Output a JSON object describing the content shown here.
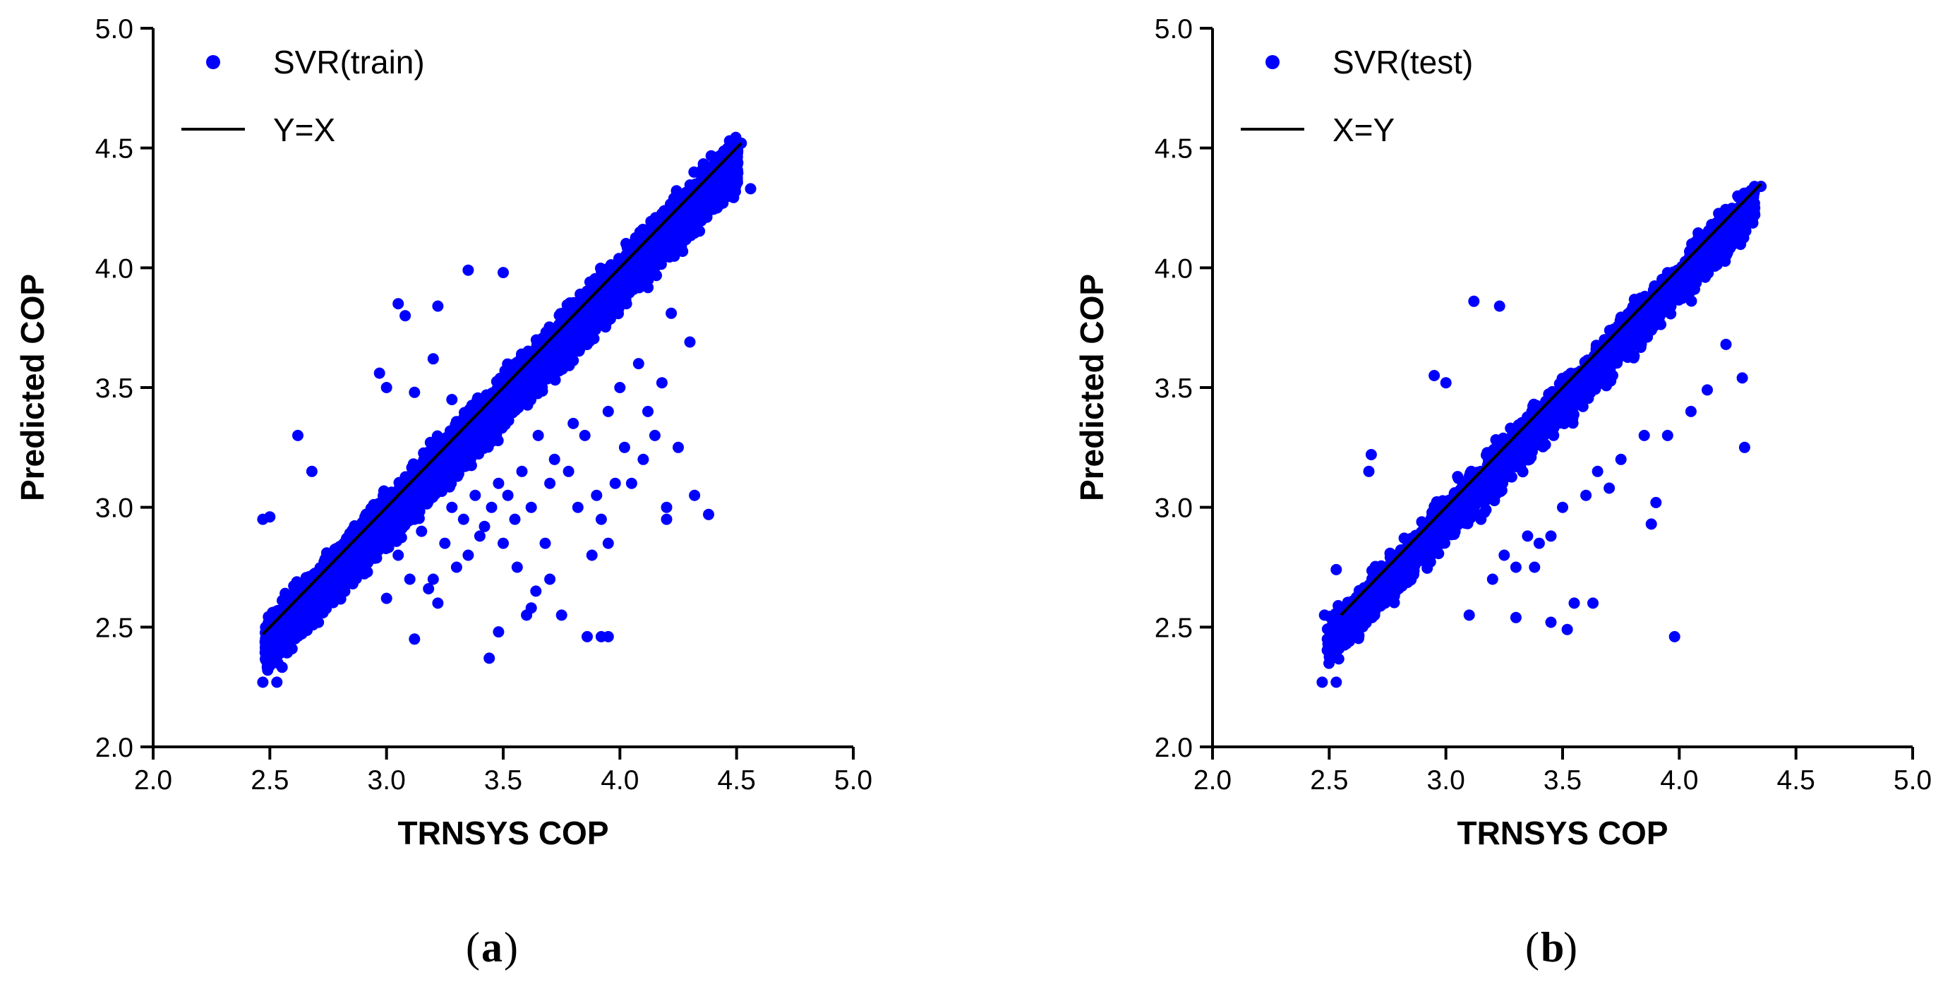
{
  "chart_data": [
    {
      "type": "scatter",
      "panel_label": "a",
      "xlabel": "TRNSYS COP",
      "ylabel": "Predicted COP",
      "xlim": [
        2.0,
        5.0
      ],
      "ylim": [
        2.0,
        5.0
      ],
      "xticks": [
        "2.0",
        "2.5",
        "3.0",
        "3.5",
        "4.0",
        "4.5",
        "5.0"
      ],
      "yticks": [
        "2.0",
        "2.5",
        "3.0",
        "3.5",
        "4.0",
        "4.5",
        "5.0"
      ],
      "grid": false,
      "legend_position": "top-left",
      "series": [
        {
          "name": "SVR(train)",
          "kind": "scatter",
          "color": "#0000ff",
          "x_range": [
            2.46,
            4.57
          ],
          "approx_points": 6000,
          "band_offset": -0.06,
          "band_spread": 0.14,
          "outliers": [
            [
              3.05,
              3.85
            ],
            [
              3.08,
              3.8
            ],
            [
              3.22,
              3.84
            ],
            [
              3.35,
              3.99
            ],
            [
              3.5,
              3.98
            ],
            [
              2.62,
              3.3
            ],
            [
              2.68,
              3.15
            ],
            [
              2.97,
              3.56
            ],
            [
              3.0,
              3.5
            ],
            [
              3.12,
              3.48
            ],
            [
              3.2,
              3.62
            ],
            [
              3.28,
              3.45
            ],
            [
              4.22,
              3.81
            ],
            [
              4.3,
              3.69
            ],
            [
              4.18,
              3.52
            ],
            [
              4.08,
              3.6
            ],
            [
              4.0,
              3.5
            ],
            [
              3.95,
              3.4
            ],
            [
              3.85,
              3.3
            ],
            [
              3.8,
              3.35
            ],
            [
              3.72,
              3.2
            ],
            [
              3.7,
              3.1
            ],
            [
              3.65,
              3.3
            ],
            [
              3.62,
              3.0
            ],
            [
              3.58,
              3.15
            ],
            [
              3.55,
              2.95
            ],
            [
              3.52,
              3.05
            ],
            [
              3.5,
              2.85
            ],
            [
              3.48,
              3.1
            ],
            [
              3.45,
              3.0
            ],
            [
              3.42,
              2.92
            ],
            [
              3.4,
              2.88
            ],
            [
              3.38,
              3.05
            ],
            [
              3.35,
              2.8
            ],
            [
              3.33,
              2.95
            ],
            [
              3.3,
              2.75
            ],
            [
              3.28,
              3.0
            ],
            [
              3.25,
              2.85
            ],
            [
              3.22,
              2.6
            ],
            [
              3.2,
              2.7
            ],
            [
              3.18,
              2.66
            ],
            [
              3.15,
              2.9
            ],
            [
              3.1,
              2.7
            ],
            [
              3.05,
              2.8
            ],
            [
              3.0,
              2.62
            ],
            [
              3.12,
              2.45
            ],
            [
              3.44,
              2.37
            ],
            [
              3.48,
              2.48
            ],
            [
              3.62,
              2.58
            ],
            [
              3.7,
              2.7
            ],
            [
              3.75,
              2.55
            ],
            [
              3.6,
              2.55
            ],
            [
              3.86,
              2.46
            ],
            [
              3.92,
              2.46
            ],
            [
              3.95,
              2.46
            ],
            [
              3.88,
              2.8
            ],
            [
              3.92,
              2.95
            ],
            [
              3.95,
              2.85
            ],
            [
              4.05,
              3.1
            ],
            [
              4.1,
              3.2
            ],
            [
              4.15,
              3.3
            ],
            [
              4.2,
              3.0
            ],
            [
              4.25,
              3.25
            ],
            [
              4.32,
              3.05
            ],
            [
              4.38,
              2.97
            ],
            [
              4.2,
              2.95
            ],
            [
              4.12,
              3.4
            ],
            [
              4.02,
              3.25
            ],
            [
              3.98,
              3.1
            ],
            [
              3.9,
              3.05
            ],
            [
              3.82,
              3.0
            ],
            [
              3.78,
              3.15
            ],
            [
              3.68,
              2.85
            ],
            [
              3.64,
              2.65
            ],
            [
              3.56,
              2.75
            ],
            [
              4.56,
              4.33
            ],
            [
              4.47,
              4.53
            ],
            [
              4.52,
              4.52
            ],
            [
              2.47,
              2.27
            ],
            [
              2.53,
              2.27
            ],
            [
              2.47,
              2.95
            ],
            [
              2.5,
              2.96
            ]
          ]
        },
        {
          "name": "Y=X",
          "kind": "line",
          "color": "#000000",
          "x": [
            2.47,
            4.52
          ],
          "y": [
            2.47,
            4.52
          ]
        }
      ]
    },
    {
      "type": "scatter",
      "panel_label": "b",
      "xlabel": "TRNSYS COP",
      "ylabel": "Predicted COP",
      "xlim": [
        2.0,
        5.0
      ],
      "ylim": [
        2.0,
        5.0
      ],
      "xticks": [
        "2.0",
        "2.5",
        "3.0",
        "3.5",
        "4.0",
        "4.5",
        "5.0"
      ],
      "yticks": [
        "2.0",
        "2.5",
        "3.0",
        "3.5",
        "4.0",
        "4.5",
        "5.0"
      ],
      "grid": false,
      "legend_position": "top-left",
      "series": [
        {
          "name": "SVR(test)",
          "kind": "scatter",
          "color": "#0000ff",
          "x_range": [
            2.47,
            4.38
          ],
          "approx_points": 2200,
          "band_offset": -0.06,
          "band_spread": 0.13,
          "outliers": [
            [
              3.12,
              3.86
            ],
            [
              3.23,
              3.84
            ],
            [
              2.68,
              3.22
            ],
            [
              2.67,
              3.15
            ],
            [
              2.95,
              3.55
            ],
            [
              3.0,
              3.52
            ],
            [
              3.45,
              2.52
            ],
            [
              3.52,
              2.49
            ],
            [
              3.55,
              2.6
            ],
            [
              3.63,
              2.6
            ],
            [
              3.98,
              2.46
            ],
            [
              3.3,
              2.54
            ],
            [
              3.1,
              2.55
            ],
            [
              4.28,
              3.25
            ],
            [
              4.27,
              3.54
            ],
            [
              4.2,
              3.68
            ],
            [
              4.12,
              3.49
            ],
            [
              4.05,
              3.4
            ],
            [
              3.95,
              3.3
            ],
            [
              3.9,
              3.02
            ],
            [
              3.85,
              3.3
            ],
            [
              3.75,
              3.2
            ],
            [
              3.7,
              3.08
            ],
            [
              3.65,
              3.15
            ],
            [
              3.6,
              3.05
            ],
            [
              3.5,
              3.0
            ],
            [
              3.45,
              2.88
            ],
            [
              3.4,
              2.85
            ],
            [
              3.35,
              2.88
            ],
            [
              3.3,
              2.75
            ],
            [
              3.25,
              2.8
            ],
            [
              3.2,
              2.7
            ],
            [
              3.15,
              2.95
            ],
            [
              3.38,
              2.75
            ],
            [
              3.88,
              2.93
            ],
            [
              4.35,
              4.34
            ],
            [
              4.3,
              4.25
            ],
            [
              2.47,
              2.27
            ],
            [
              2.53,
              2.27
            ],
            [
              2.53,
              2.74
            ],
            [
              2.48,
              2.55
            ]
          ]
        },
        {
          "name": "X=Y",
          "kind": "line",
          "color": "#000000",
          "x": [
            2.55,
            4.35
          ],
          "y": [
            2.55,
            4.35
          ]
        }
      ]
    }
  ]
}
